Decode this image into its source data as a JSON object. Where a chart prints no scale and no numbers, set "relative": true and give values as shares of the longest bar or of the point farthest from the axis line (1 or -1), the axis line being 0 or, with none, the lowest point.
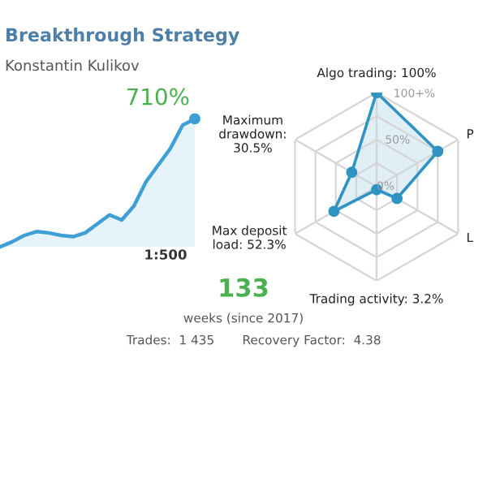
{
  "chart_data": [
    {
      "type": "area",
      "title": "Breakthrough Strategy",
      "subtitle": "Konstantin Kulikov",
      "relative": true,
      "categories": [
        null,
        null,
        null,
        null,
        null,
        null,
        null,
        null,
        null,
        null,
        null,
        null,
        null,
        null,
        null,
        null,
        null
      ],
      "series": [
        {
          "color": "#3d9fd3",
          "values": [
            0,
            0.04,
            0.09,
            0.12,
            0.11,
            0.09,
            0.08,
            0.11,
            0.18,
            0.25,
            0.21,
            0.32,
            0.51,
            0.64,
            0.77,
            0.95,
            1
          ]
        }
      ],
      "annotations": [
        "710%",
        "1:500"
      ]
    },
    {
      "type": "radar",
      "categories": [
        "Algo trading: 100%",
        "P",
        "L",
        "Trading activity: 3.2%",
        "Max deposit\nload: 52.3%",
        "Maximum\ndrawdown:\n30.5%"
      ],
      "series": [
        {
          "color": "#2f93c4",
          "values": [
            100,
            75,
            25,
            3.2,
            52.3,
            30.5
          ]
        }
      ],
      "ylim": [
        0,
        100
      ],
      "yticks": [
        {
          "value": 0,
          "label": "0%"
        },
        {
          "value": 50,
          "label": "50%"
        },
        {
          "value": 100,
          "label": "100+%"
        }
      ],
      "marker": "circle",
      "grid": true
    },
    {
      "type": "other",
      "annotations": [
        "133",
        "weeks (since 2017)",
        "Trades:  1 435",
        "Recovery Factor:  4.38"
      ]
    }
  ]
}
